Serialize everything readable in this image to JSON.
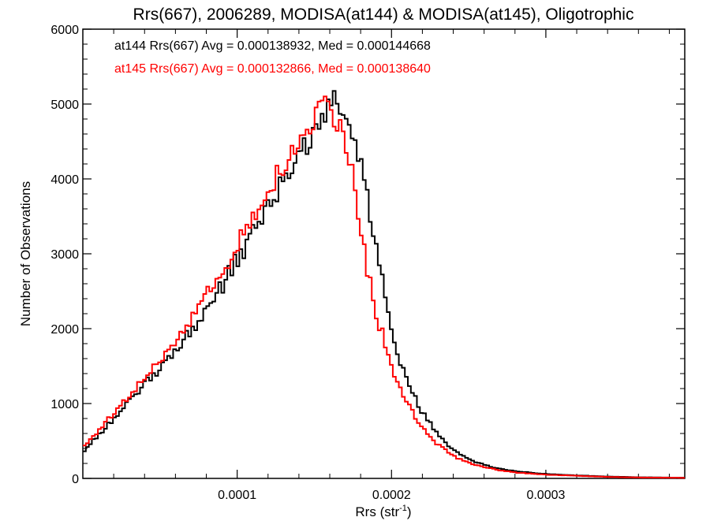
{
  "chart_data": {
    "type": "line",
    "style": "histogram-step",
    "title": "Rrs(667), 2006289, MODISA(at144) & MODISA(at145), Oligotrophic",
    "xlabel": "Rrs (str",
    "xlabel_sup": "-1",
    "xlabel_close": ")",
    "ylabel": "Number of Observations",
    "xlim": [
      0,
      0.00039
    ],
    "ylim": [
      0,
      6000
    ],
    "x_ticks": [
      0.0001,
      0.0002,
      0.0003
    ],
    "x_tick_labels": [
      "0.0001",
      "0.0002",
      "0.0003"
    ],
    "y_ticks": [
      0,
      1000,
      2000,
      3000,
      4000,
      5000,
      6000
    ],
    "y_tick_labels": [
      "0",
      "1000",
      "2000",
      "3000",
      "4000",
      "5000",
      "6000"
    ],
    "grid": false,
    "legend_placement": "top-left",
    "series": [
      {
        "name": "at144",
        "legend_text": "at144 Rrs(667) Avg = 0.000138932, Med = 0.000144668",
        "color": "#000000",
        "points": [
          [
            0,
            350
          ],
          [
            1e-05,
            580
          ],
          [
            2e-05,
            800
          ],
          [
            3e-05,
            1020
          ],
          [
            4e-05,
            1250
          ],
          [
            5e-05,
            1480
          ],
          [
            6e-05,
            1720
          ],
          [
            7e-05,
            1980
          ],
          [
            8e-05,
            2250
          ],
          [
            9e-05,
            2570
          ],
          [
            0.0001,
            2920
          ],
          [
            0.00011,
            3250
          ],
          [
            0.00012,
            3620
          ],
          [
            0.00013,
            3980
          ],
          [
            0.00014,
            4330
          ],
          [
            0.00015,
            4620
          ],
          [
            0.00016,
            4950
          ],
          [
            0.000165,
            5080
          ],
          [
            0.00017,
            4880
          ],
          [
            0.000175,
            4600
          ],
          [
            0.00018,
            4250
          ],
          [
            0.000185,
            3680
          ],
          [
            0.00019,
            3050
          ],
          [
            0.000195,
            2500
          ],
          [
            0.0002,
            1920
          ],
          [
            0.00021,
            1300
          ],
          [
            0.00022,
            880
          ],
          [
            0.00023,
            580
          ],
          [
            0.00024,
            380
          ],
          [
            0.00025,
            250
          ],
          [
            0.00026,
            180
          ],
          [
            0.00027,
            130
          ],
          [
            0.00028,
            95
          ],
          [
            0.0003,
            60
          ],
          [
            0.00032,
            40
          ],
          [
            0.00034,
            25
          ],
          [
            0.00036,
            15
          ],
          [
            0.00039,
            10
          ]
        ]
      },
      {
        "name": "at145",
        "legend_text": "at145 Rrs(667) Avg = 0.000132866, Med = 0.000138640",
        "color": "#ff0000",
        "points": [
          [
            0,
            420
          ],
          [
            1e-05,
            640
          ],
          [
            2e-05,
            860
          ],
          [
            3e-05,
            1090
          ],
          [
            4e-05,
            1330
          ],
          [
            5e-05,
            1580
          ],
          [
            6e-05,
            1840
          ],
          [
            7e-05,
            2130
          ],
          [
            8e-05,
            2430
          ],
          [
            9e-05,
            2760
          ],
          [
            0.0001,
            3100
          ],
          [
            0.00011,
            3470
          ],
          [
            0.00012,
            3830
          ],
          [
            0.00013,
            4160
          ],
          [
            0.00014,
            4480
          ],
          [
            0.00015,
            4760
          ],
          [
            0.000155,
            5000
          ],
          [
            0.00016,
            4900
          ],
          [
            0.000165,
            4780
          ],
          [
            0.00017,
            4500
          ],
          [
            0.000175,
            4000
          ],
          [
            0.00018,
            3380
          ],
          [
            0.000185,
            2700
          ],
          [
            0.00019,
            2200
          ],
          [
            0.000195,
            1850
          ],
          [
            0.0002,
            1450
          ],
          [
            0.00021,
            1000
          ],
          [
            0.00022,
            680
          ],
          [
            0.00023,
            450
          ],
          [
            0.00024,
            300
          ],
          [
            0.00025,
            210
          ],
          [
            0.00026,
            150
          ],
          [
            0.00027,
            110
          ],
          [
            0.00028,
            80
          ],
          [
            0.0003,
            50
          ],
          [
            0.00032,
            35
          ],
          [
            0.00034,
            20
          ],
          [
            0.00036,
            12
          ],
          [
            0.00039,
            8
          ]
        ]
      }
    ]
  }
}
